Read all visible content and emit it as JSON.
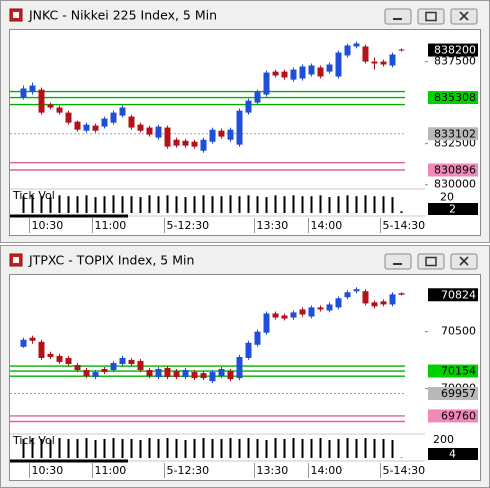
{
  "chart_data": [
    {
      "type": "candlestick",
      "title": "JNKC - Nikkei 225 Index, 5 Min",
      "categories": [
        null,
        "10:30",
        null,
        null,
        null,
        null,
        null,
        null,
        "11:00",
        null,
        null,
        null,
        null,
        null,
        null,
        null,
        "5-12:30",
        null,
        null,
        null,
        null,
        null,
        null,
        null,
        null,
        null,
        "13:30",
        null,
        null,
        null,
        null,
        null,
        "14:00",
        null,
        null,
        null,
        null,
        null,
        null,
        null,
        "5-14:30",
        null,
        null
      ],
      "open": [
        835310,
        835670,
        835790,
        834880,
        834700,
        834390,
        833840,
        833290,
        833600,
        833540,
        833780,
        834210,
        834150,
        833660,
        833480,
        832870,
        833480,
        832740,
        832680,
        832620,
        832070,
        832620,
        833290,
        832740,
        832440,
        834390,
        835000,
        835490,
        836890,
        836890,
        836400,
        836470,
        836710,
        837140,
        836890,
        836590,
        837870,
        838420,
        838420,
        837500,
        837500,
        837260,
        838230
      ],
      "high": [
        836040,
        836220,
        835920,
        835000,
        834820,
        834510,
        833900,
        833780,
        833720,
        834150,
        834510,
        834820,
        834270,
        833780,
        833600,
        833660,
        833600,
        832870,
        832800,
        832740,
        832870,
        833480,
        833420,
        833480,
        834640,
        835240,
        835790,
        836950,
        837010,
        837010,
        837140,
        837320,
        837380,
        837260,
        837440,
        838170,
        838600,
        838720,
        838540,
        837750,
        837620,
        838050,
        838300
      ],
      "low": [
        835180,
        835490,
        834270,
        834580,
        834270,
        833660,
        833230,
        833170,
        833170,
        833420,
        833660,
        834090,
        833350,
        833170,
        832930,
        832740,
        832200,
        832260,
        832260,
        832200,
        831950,
        832500,
        832800,
        832620,
        832320,
        834270,
        834880,
        835370,
        836530,
        836400,
        836280,
        836340,
        836590,
        836470,
        836770,
        836470,
        837750,
        838300,
        837380,
        837010,
        837200,
        837140,
        838110
      ],
      "close": [
        835860,
        836040,
        834390,
        834700,
        834390,
        833780,
        833350,
        833660,
        833290,
        834030,
        834390,
        834700,
        833480,
        833290,
        833050,
        833540,
        832320,
        832380,
        832380,
        832320,
        832740,
        833350,
        832930,
        833350,
        834510,
        835120,
        835670,
        836830,
        836650,
        836530,
        837010,
        837200,
        837260,
        836590,
        837320,
        838050,
        838480,
        838600,
        837500,
        837380,
        837320,
        837930,
        838200
      ],
      "up_color": "#1f4fd8",
      "down_color": "#b3121a",
      "ylim": [
        829800,
        839300
      ],
      "yticks": [
        830000,
        832500,
        837500
      ],
      "levels": [
        {
          "value": 838200,
          "box": "#000000",
          "text": "#ffffff"
        },
        {
          "value": 835670,
          "color": "#00b000"
        },
        {
          "value": 835308,
          "color": "#00b000",
          "box": "#00d000"
        },
        {
          "value": 834880,
          "color": "#00b000"
        },
        {
          "value": 833102,
          "color": "#a0a0a0",
          "dash": true,
          "box": "#b8b8b8"
        },
        {
          "value": 831340,
          "color": "#e060a0"
        },
        {
          "value": 830896,
          "color": "#e060a0",
          "box": "#f088bc"
        }
      ],
      "volume_label": "Tick Vol",
      "volume": [
        19,
        20,
        19,
        18,
        20,
        19,
        19,
        20,
        18,
        19,
        20,
        19,
        19,
        18,
        20,
        19,
        20,
        19,
        18,
        19,
        20,
        19,
        19,
        20,
        19,
        20,
        19,
        18,
        20,
        19,
        20,
        19,
        19,
        20,
        18,
        19,
        20,
        19,
        20,
        19,
        19,
        18,
        2
      ],
      "volume_color": "#000000",
      "vol_ylim": [
        0,
        26
      ],
      "vol_yticks": [
        20
      ]
    },
    {
      "type": "candlestick",
      "title": "JTPXC - TOPIX Index, 5 Min",
      "categories": [
        null,
        "10:30",
        null,
        null,
        null,
        null,
        null,
        null,
        "11:00",
        null,
        null,
        null,
        null,
        null,
        null,
        null,
        "5-12:30",
        null,
        null,
        null,
        null,
        null,
        null,
        null,
        null,
        null,
        "13:30",
        null,
        null,
        null,
        null,
        null,
        "14:00",
        null,
        null,
        null,
        null,
        null,
        null,
        null,
        "5-14:30",
        null,
        null
      ],
      "open": [
        70367,
        70447,
        70411,
        70305,
        70287,
        70269,
        70207,
        70163,
        70101,
        70172,
        70163,
        70216,
        70252,
        70243,
        70163,
        70101,
        70181,
        70154,
        70101,
        70145,
        70136,
        70065,
        70109,
        70154,
        70092,
        70269,
        70385,
        70491,
        70660,
        70642,
        70624,
        70695,
        70633,
        70713,
        70686,
        70713,
        70802,
        70855,
        70855,
        70757,
        70766,
        70739,
        70837
      ],
      "high": [
        70447,
        70465,
        70429,
        70323,
        70305,
        70287,
        70225,
        70181,
        70163,
        70190,
        70243,
        70287,
        70269,
        70260,
        70181,
        70190,
        70198,
        70172,
        70181,
        70163,
        70154,
        70163,
        70190,
        70172,
        70296,
        70420,
        70518,
        70677,
        70677,
        70660,
        70686,
        70713,
        70731,
        70731,
        70757,
        70810,
        70864,
        70890,
        70873,
        70775,
        70784,
        70846,
        70846
      ],
      "low": [
        70358,
        70394,
        70252,
        70260,
        70216,
        70198,
        70145,
        70092,
        70083,
        70127,
        70145,
        70198,
        70198,
        70145,
        70092,
        70083,
        70083,
        70083,
        70083,
        70074,
        70074,
        70048,
        70092,
        70065,
        70074,
        70252,
        70367,
        70474,
        70606,
        70598,
        70606,
        70633,
        70615,
        70677,
        70669,
        70695,
        70784,
        70837,
        70731,
        70704,
        70722,
        70722,
        70819
      ],
      "close": [
        70429,
        70420,
        70269,
        70278,
        70234,
        70216,
        70163,
        70109,
        70145,
        70145,
        70225,
        70269,
        70216,
        70163,
        70109,
        70172,
        70101,
        70101,
        70163,
        70092,
        70092,
        70145,
        70172,
        70083,
        70278,
        70402,
        70500,
        70660,
        70624,
        70615,
        70669,
        70651,
        70713,
        70695,
        70739,
        70793,
        70846,
        70873,
        70748,
        70722,
        70739,
        70828,
        70824
      ],
      "up_color": "#1f4fd8",
      "down_color": "#b3121a",
      "ylim": [
        69610,
        70980
      ],
      "yticks": [
        70000,
        70500
      ],
      "levels": [
        {
          "value": 70824,
          "box": "#000000",
          "text": "#ffffff"
        },
        {
          "value": 70198,
          "color": "#00b000"
        },
        {
          "value": 70154,
          "color": "#00b000",
          "box": "#00d000"
        },
        {
          "value": 70109,
          "color": "#00b000"
        },
        {
          "value": 69957,
          "color": "#a0a0a0",
          "dash": true,
          "box": "#b8b8b8"
        },
        {
          "value": 69760,
          "color": "#e060a0",
          "box": "#f088bc"
        },
        {
          "value": 69711,
          "color": "#e060a0"
        }
      ],
      "volume_label": "Tick Vol",
      "volume": [
        190,
        200,
        190,
        180,
        200,
        190,
        190,
        200,
        180,
        190,
        200,
        190,
        190,
        180,
        200,
        190,
        200,
        190,
        180,
        190,
        200,
        190,
        190,
        200,
        190,
        200,
        190,
        180,
        200,
        190,
        200,
        190,
        190,
        200,
        180,
        190,
        200,
        190,
        200,
        190,
        190,
        180,
        4
      ],
      "volume_color": "#000000",
      "vol_ylim": [
        0,
        230
      ],
      "vol_yticks": [
        200
      ]
    }
  ]
}
